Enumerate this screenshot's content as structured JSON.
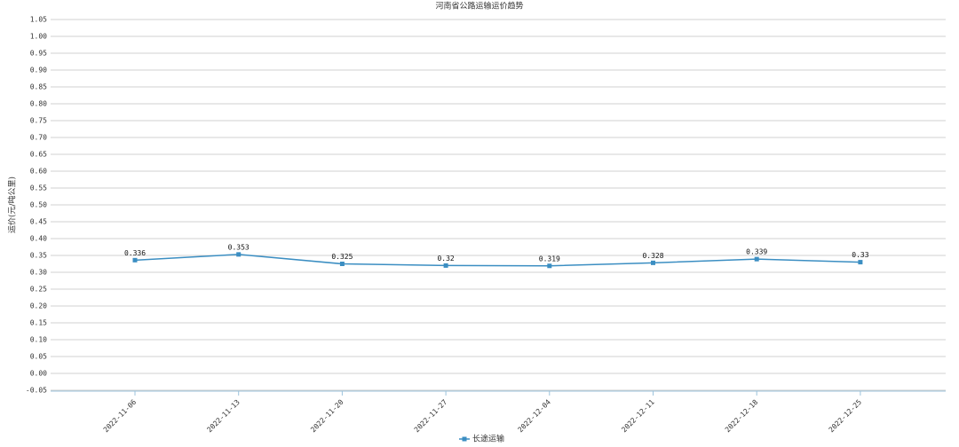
{
  "chart_data": {
    "type": "line",
    "title": "河南省公路运输运价趋势",
    "y_label": "运价(元/吨公里)",
    "categories": [
      "2022-11-06",
      "2022-11-13",
      "2022-11-20",
      "2022-11-27",
      "2022-12-04",
      "2022-12-11",
      "2022-12-18",
      "2022-12-25"
    ],
    "series": [
      {
        "name": "长途运输",
        "color": "#3b8ec2",
        "values": [
          0.336,
          0.353,
          0.325,
          0.32,
          0.319,
          0.328,
          0.339,
          0.33
        ]
      }
    ],
    "ylim": [
      -0.05,
      1.05
    ],
    "yticks": [
      -0.05,
      {
        "value": 0,
        "label": "0.00"
      },
      0.05,
      {
        "value": 0.1,
        "label": "0.10"
      },
      0.15,
      {
        "value": 0.2,
        "label": "0.20"
      },
      0.25,
      {
        "value": 0.3,
        "label": "0.30"
      },
      0.35,
      {
        "value": 0.4,
        "label": "0.40"
      },
      0.45,
      {
        "value": 0.5,
        "label": "0.50"
      },
      0.55,
      {
        "value": 0.6,
        "label": "0.60"
      },
      0.65,
      {
        "value": 0.7,
        "label": "0.70"
      },
      0.75,
      {
        "value": 0.8,
        "label": "0.80"
      },
      0.85,
      {
        "value": 0.9,
        "label": "0.90"
      },
      0.95,
      {
        "value": 1,
        "label": "1.00"
      },
      1.05
    ],
    "grid": true,
    "legend": "bottom"
  }
}
